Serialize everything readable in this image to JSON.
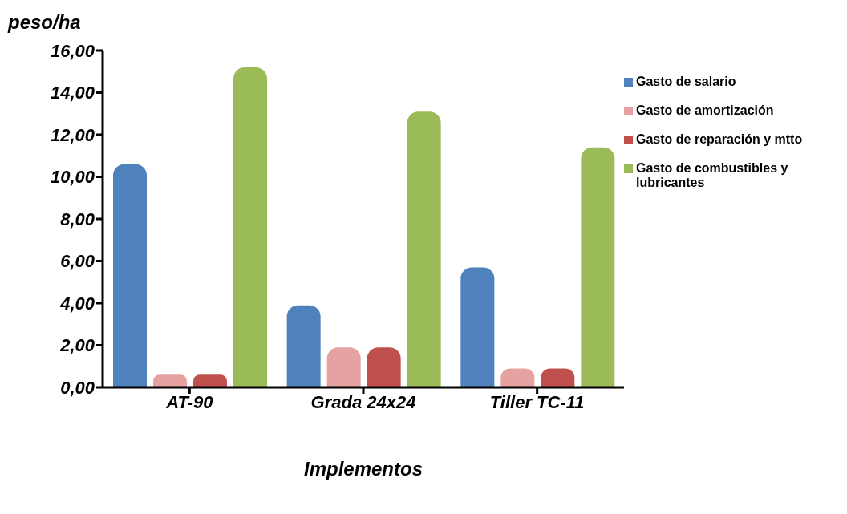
{
  "chart_data": {
    "type": "bar",
    "ylabel": "peso/ha",
    "xlabel": "Implementos",
    "categories": [
      "AT-90",
      "Grada 24x24",
      "Tiller TC-11"
    ],
    "series": [
      {
        "name": "Gasto de salario",
        "color": "#4f81bd",
        "values": [
          10.6,
          3.9,
          5.7
        ]
      },
      {
        "name": "Gasto de amortización",
        "color": "#e6a1a1",
        "values": [
          0.6,
          1.9,
          0.9
        ]
      },
      {
        "name": "Gasto de reparación y mtto",
        "color": "#c0504d",
        "values": [
          0.6,
          1.9,
          0.9
        ]
      },
      {
        "name": "Gasto de combustibles y lubricantes",
        "color": "#9bbb59",
        "values": [
          15.2,
          13.1,
          11.4
        ]
      }
    ],
    "ylim": [
      0,
      16
    ],
    "yticks": [
      {
        "value": 0,
        "label": "0,00"
      },
      {
        "value": 2,
        "label": "2,00"
      },
      {
        "value": 4,
        "label": "4,00"
      },
      {
        "value": 6,
        "label": "6,00"
      },
      {
        "value": 8,
        "label": "8,00"
      },
      {
        "value": 10,
        "label": "10,00"
      },
      {
        "value": 12,
        "label": "12,00"
      },
      {
        "value": 14,
        "label": "14,00"
      },
      {
        "value": 16,
        "label": "16,00"
      }
    ],
    "grid": false,
    "legend": "top right"
  }
}
